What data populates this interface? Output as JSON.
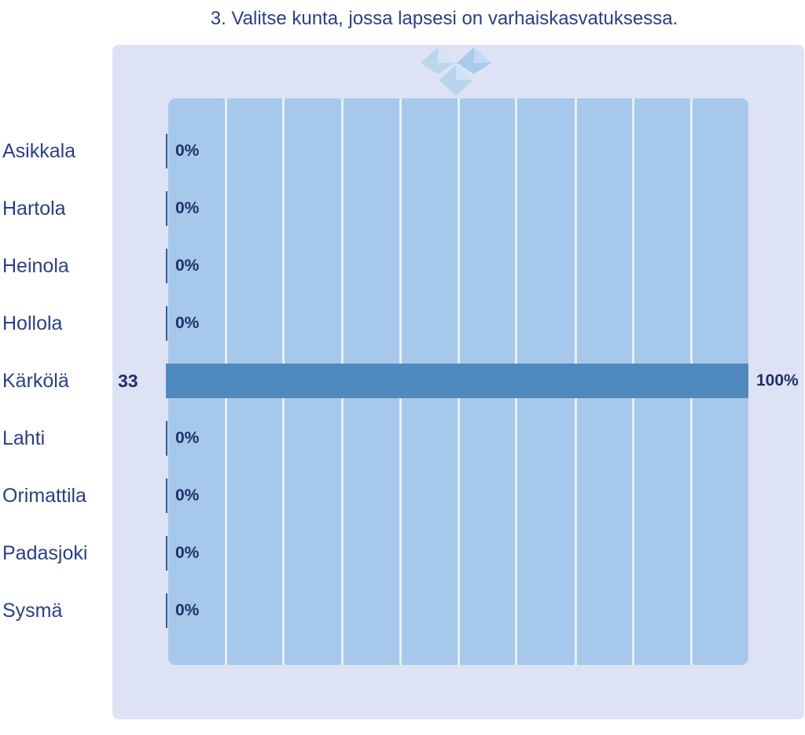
{
  "chart_data": {
    "type": "bar",
    "orientation": "horizontal",
    "title": "3. Valitse kunta, jossa lapsesi on varhaiskasvatuksessa.",
    "categories": [
      "Asikkala",
      "Hartola",
      "Heinola",
      "Hollola",
      "Kärkölä",
      "Lahti",
      "Orimattila",
      "Padasjoki",
      "Sysmä"
    ],
    "counts": [
      null,
      null,
      null,
      null,
      33,
      null,
      null,
      null,
      null
    ],
    "count_labels": [
      "",
      "",
      "",
      "",
      "33",
      "",
      "",
      "",
      ""
    ],
    "values": [
      0,
      0,
      0,
      0,
      100,
      0,
      0,
      0,
      0
    ],
    "value_labels": [
      "0%",
      "0%",
      "0%",
      "0%",
      "100%",
      "0%",
      "0%",
      "0%",
      "0%"
    ],
    "xlim": [
      0,
      100
    ],
    "grid": true,
    "colors": {
      "bar": "#5089bd",
      "plot_background": "#a6c8ea",
      "panel_background": "#dde3f4",
      "text": "#2a3f84"
    }
  }
}
